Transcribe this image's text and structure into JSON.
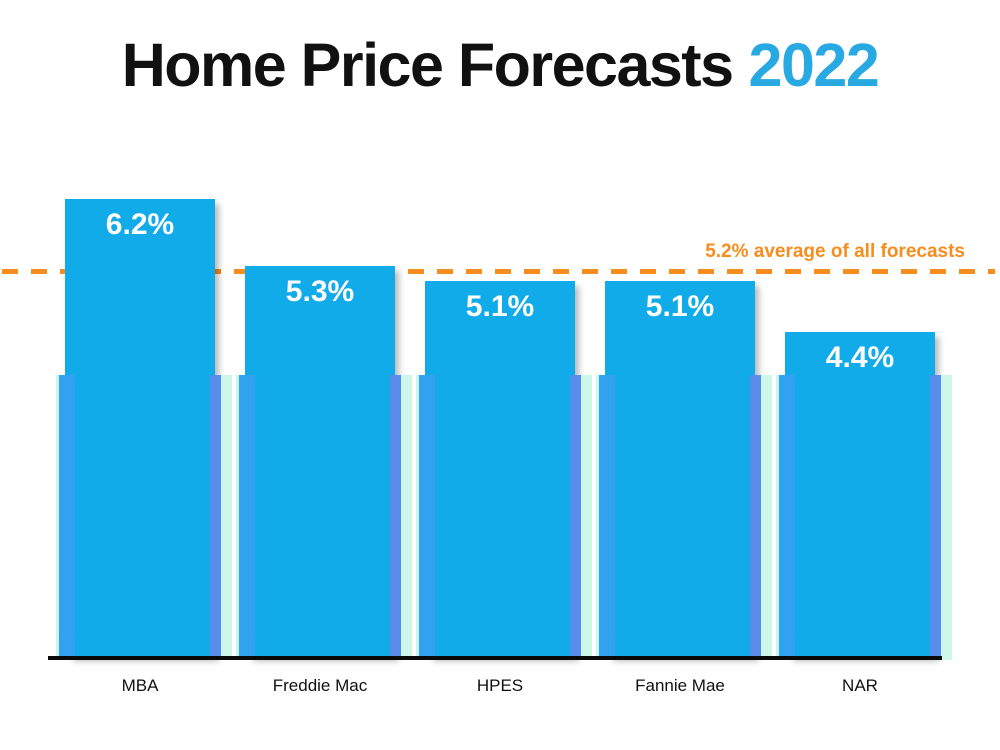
{
  "page": {
    "background": "#ffffff"
  },
  "title": {
    "main": "Home Price Forecasts",
    "year": "2022"
  },
  "annotation": {
    "text": "5.2% average of all forecasts"
  },
  "chart_data": {
    "type": "bar",
    "title": "Home Price Forecasts 2022",
    "categories": [
      "MBA",
      "Freddie Mac",
      "HPES",
      "Fannie Mae",
      "NAR"
    ],
    "values": [
      6.2,
      5.3,
      5.1,
      5.1,
      4.4
    ],
    "value_labels": [
      "6.2%",
      "5.3%",
      "5.1%",
      "5.1%",
      "4.4%"
    ],
    "unit": "%",
    "ylim": [
      0,
      6.6
    ],
    "grid": false,
    "legend": "none",
    "xlabel": "",
    "ylabel": "",
    "average_line": {
      "value": 5.2,
      "label": "5.2% average of all forecasts",
      "style": "dashed",
      "color": "#F68D1E"
    }
  },
  "colors": {
    "bar": "#12ABE9",
    "title_accent": "#29A9E1",
    "accent_orange": "#F68D1E",
    "axis": "#0A0A0A",
    "value_label": "#FFFFFF",
    "category_label": "#111111",
    "glow_blue_left": "#2FA3EF",
    "glow_blue_right": "#5B8BEB",
    "glow_pale_left": "#C8F5FF",
    "glow_pale_right": "#CDF7E9"
  }
}
